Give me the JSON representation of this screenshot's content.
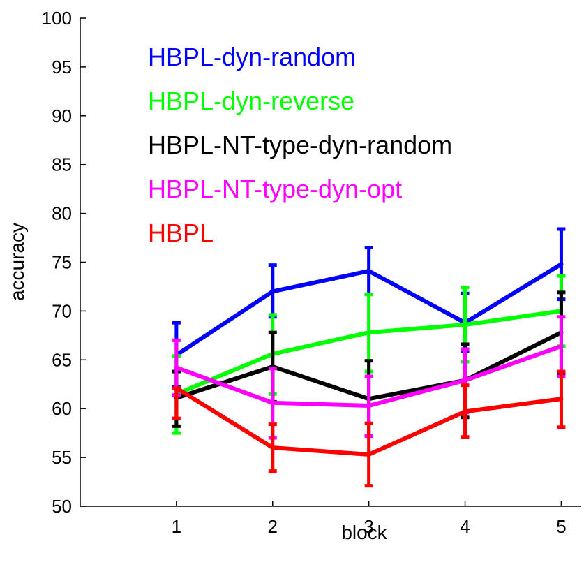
{
  "chart_data": {
    "type": "line",
    "title": "",
    "xlabel": "block",
    "ylabel": "accuracy",
    "x": [
      1,
      2,
      3,
      4,
      5
    ],
    "xlim": [
      0,
      5.2
    ],
    "ylim": [
      50,
      100
    ],
    "xticks": [
      "1",
      "2",
      "3",
      "4",
      "5"
    ],
    "yticks": [
      "50",
      "55",
      "60",
      "65",
      "70",
      "75",
      "80",
      "85",
      "90",
      "95",
      "100"
    ],
    "grid": false,
    "legend_position": "top-left",
    "series": [
      {
        "name": "HBPL-dyn-random",
        "color": "#0000ff",
        "values": [
          65.5,
          72.0,
          74.1,
          68.8,
          74.8
        ],
        "err_low": [
          62.2,
          69.4,
          71.7,
          65.9,
          71.2
        ],
        "err_high": [
          68.8,
          74.7,
          76.5,
          71.8,
          78.4
        ]
      },
      {
        "name": "HBPL-dyn-reverse",
        "color": "#00ff00",
        "values": [
          61.5,
          65.6,
          67.8,
          68.6,
          70.0
        ],
        "err_low": [
          57.5,
          61.5,
          63.8,
          64.8,
          66.4
        ],
        "err_high": [
          65.4,
          69.6,
          71.7,
          72.4,
          73.6
        ]
      },
      {
        "name": "HBPL-NT-type-dyn-random",
        "color": "#000000",
        "values": [
          61.1,
          64.3,
          61.0,
          62.9,
          67.8
        ],
        "err_low": [
          58.2,
          60.7,
          57.2,
          59.1,
          63.6
        ],
        "err_high": [
          63.8,
          67.8,
          64.9,
          66.6,
          71.9
        ]
      },
      {
        "name": "HBPL-NT-type-dyn-opt",
        "color": "#ff00ff",
        "values": [
          64.2,
          60.6,
          60.3,
          62.9,
          66.4
        ],
        "err_low": [
          61.4,
          57.0,
          57.2,
          59.6,
          63.3
        ],
        "err_high": [
          67.0,
          64.1,
          63.3,
          66.1,
          69.4
        ]
      },
      {
        "name": "HBPL",
        "color": "#ff0000",
        "values": [
          62.1,
          56.0,
          55.3,
          59.7,
          61.0
        ],
        "err_low": [
          59.0,
          53.6,
          52.1,
          57.1,
          58.1
        ],
        "err_high": [
          62.1,
          58.4,
          58.5,
          62.4,
          63.8
        ]
      }
    ]
  }
}
